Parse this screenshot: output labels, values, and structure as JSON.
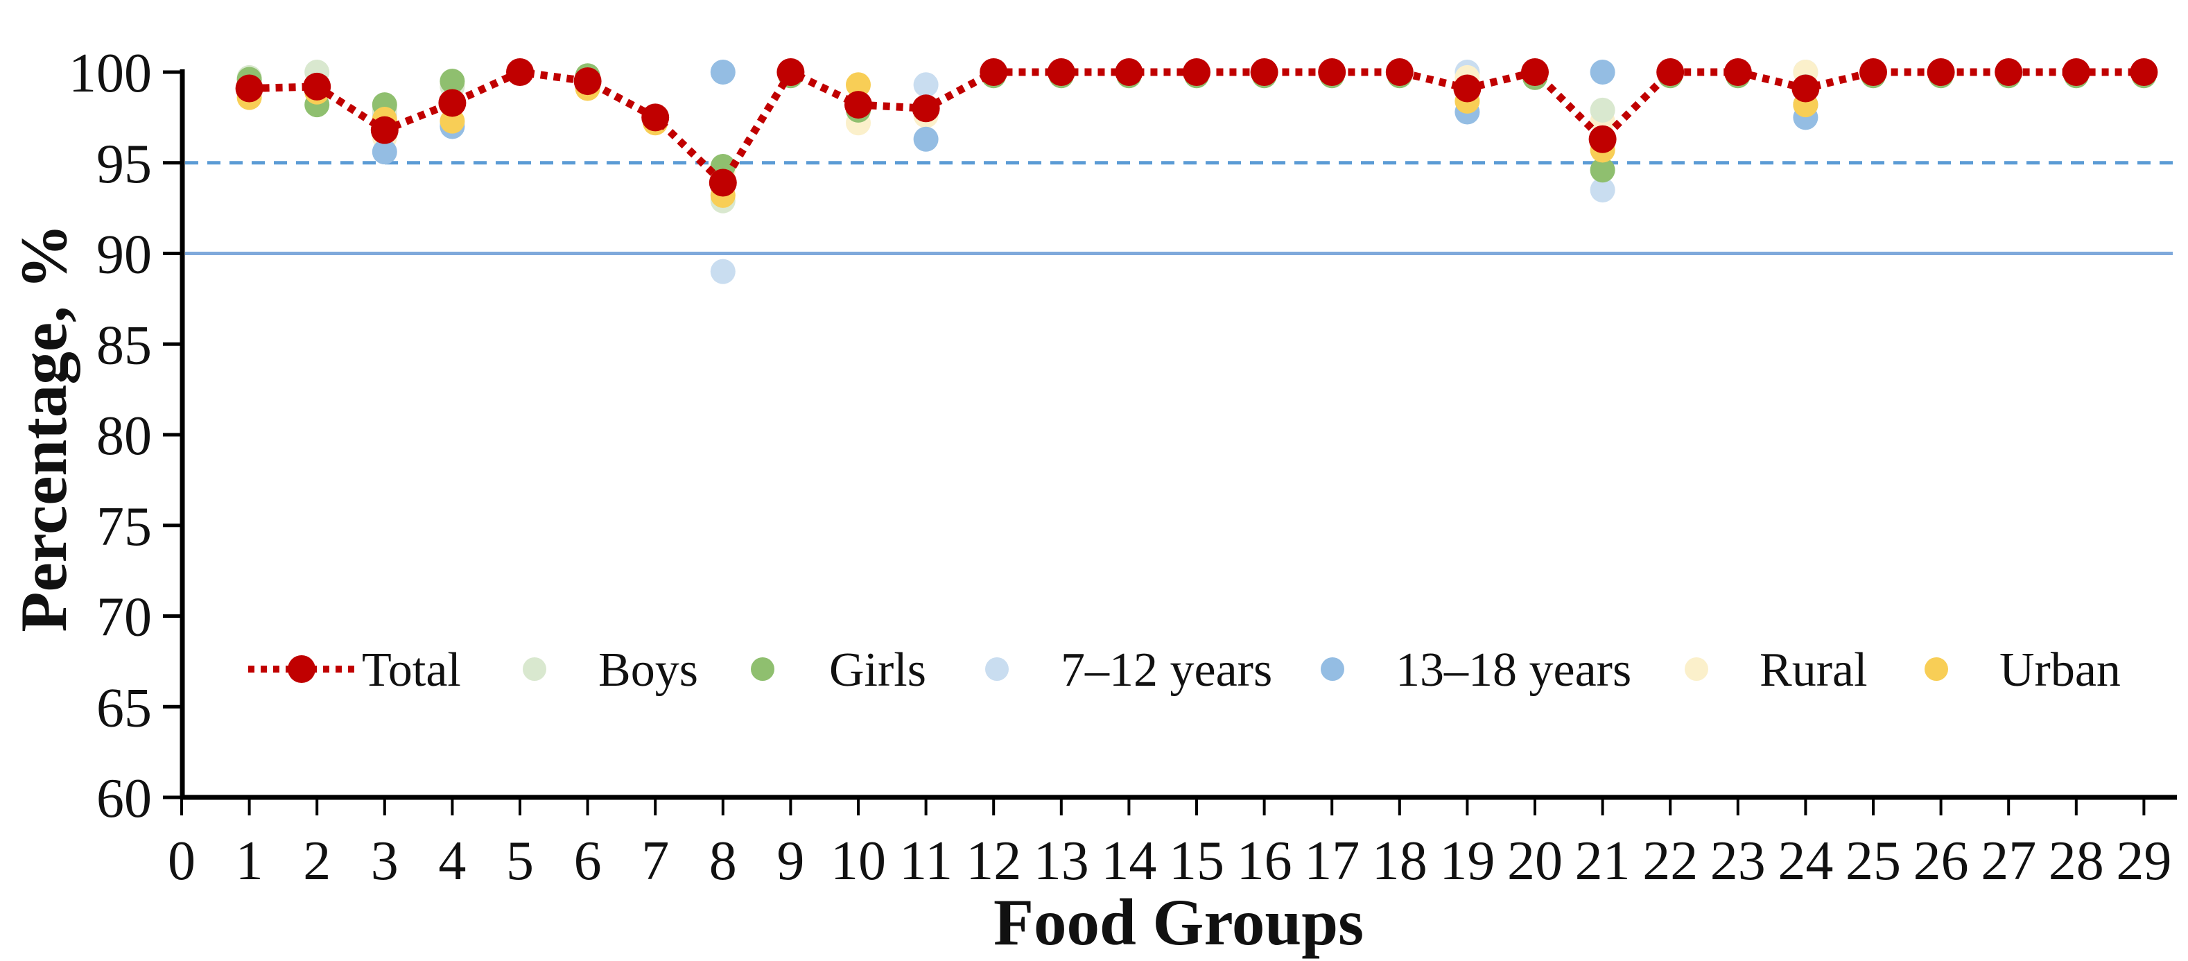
{
  "page": {
    "background": "#ffffff"
  },
  "chart_data": {
    "type": "line+scatter",
    "title": "",
    "xlabel": "Food Groups",
    "ylabel": "Percentage, %",
    "xlim": [
      0,
      29
    ],
    "ylim": [
      60,
      100
    ],
    "grid": false,
    "x_ticks": [
      0,
      1,
      2,
      3,
      4,
      5,
      6,
      7,
      8,
      9,
      10,
      11,
      12,
      13,
      14,
      15,
      16,
      17,
      18,
      19,
      20,
      21,
      22,
      23,
      24,
      25,
      26,
      27,
      28,
      29
    ],
    "y_ticks": [
      100,
      95,
      90,
      85,
      80,
      75,
      70,
      65,
      60
    ],
    "x": [
      1,
      2,
      3,
      4,
      5,
      6,
      7,
      8,
      9,
      10,
      11,
      12,
      13,
      14,
      15,
      16,
      17,
      18,
      19,
      20,
      21,
      22,
      23,
      24,
      25,
      26,
      27,
      28,
      29
    ],
    "series": [
      {
        "name": "Total",
        "type": "dotted-line-with-markers",
        "color": "#C00000",
        "values": [
          99.1,
          99.2,
          96.8,
          98.3,
          100,
          99.5,
          97.5,
          93.9,
          100,
          98.2,
          98.0,
          100,
          100,
          100,
          100,
          100,
          100,
          100,
          99.1,
          100,
          96.3,
          100,
          100,
          99.1,
          100,
          100,
          100,
          100,
          100
        ]
      },
      {
        "name": "Boys",
        "type": "scatter",
        "color": "#D9E8CF",
        "values": [
          99.7,
          100,
          97.9,
          99.2,
          100,
          99.5,
          97.4,
          92.9,
          100,
          98.1,
          98.0,
          100,
          100,
          100,
          100,
          100,
          100,
          100,
          99.1,
          100,
          97.9,
          100,
          100,
          99.2,
          100,
          100,
          100,
          100,
          100
        ]
      },
      {
        "name": "Girls",
        "type": "scatter",
        "color": "#8FBF6F",
        "values": [
          99.6,
          98.2,
          98.2,
          99.5,
          100,
          99.8,
          97.3,
          94.8,
          99.8,
          97.9,
          98.0,
          99.8,
          99.8,
          99.8,
          99.8,
          99.8,
          99.8,
          99.8,
          99.0,
          99.7,
          94.6,
          99.8,
          99.8,
          98.2,
          99.8,
          99.8,
          99.8,
          99.8,
          99.8
        ]
      },
      {
        "name": "7–12 years",
        "type": "scatter",
        "color": "#C9DDF0",
        "values": [
          99.1,
          99.2,
          97.7,
          97.2,
          100,
          99.5,
          97.5,
          89.0,
          100,
          98.3,
          99.3,
          100,
          100,
          100,
          100,
          100,
          100,
          100,
          100,
          100,
          93.5,
          100,
          100,
          100,
          100,
          100,
          100,
          100,
          100
        ]
      },
      {
        "name": "13–18 years",
        "type": "scatter",
        "color": "#94BDE3",
        "values": [
          99.1,
          99.2,
          95.6,
          97.0,
          100,
          99.5,
          97.5,
          100,
          100,
          98.2,
          96.3,
          100,
          100,
          100,
          100,
          100,
          100,
          100,
          97.8,
          100,
          100,
          100,
          100,
          97.5,
          100,
          100,
          100,
          100,
          100
        ]
      },
      {
        "name": "Rural",
        "type": "scatter",
        "color": "#FBF0CB",
        "values": [
          98.9,
          99.2,
          96.4,
          99.3,
          100,
          99.5,
          97.5,
          94.5,
          100,
          97.2,
          97.6,
          100,
          100,
          100,
          100,
          100,
          100,
          100,
          99.7,
          100,
          97.3,
          100,
          100,
          100,
          100,
          100,
          100,
          100,
          100
        ]
      },
      {
        "name": "Urban",
        "type": "scatter",
        "color": "#F8CE56",
        "values": [
          98.6,
          98.9,
          97.4,
          97.3,
          100,
          99.1,
          97.2,
          93.2,
          100,
          99.3,
          98.0,
          100,
          100,
          100,
          100,
          100,
          100,
          100,
          98.4,
          100,
          95.7,
          100,
          100,
          98.2,
          100,
          100,
          100,
          100,
          100
        ]
      }
    ],
    "reference_lines": [
      {
        "value": 95,
        "style": "dashed",
        "color": "#5B9BD5"
      },
      {
        "value": 90,
        "style": "solid",
        "color": "#7FA9DB"
      }
    ],
    "legend": {
      "position": "inside-bottom",
      "entries": [
        "Total",
        "Boys",
        "Girls",
        "7–12 years",
        "13–18 years",
        "Rural",
        "Urban"
      ]
    },
    "axis_color": "#000000"
  }
}
